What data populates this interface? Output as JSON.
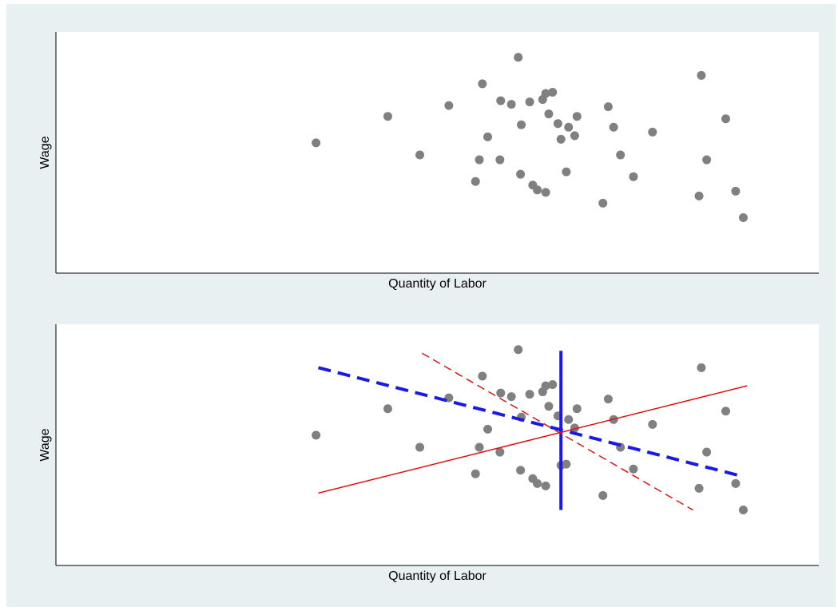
{
  "chart_data": [
    {
      "type": "scatter",
      "xlabel": "Quantity of Labor",
      "ylabel": "Wage",
      "xlim": [
        0,
        100
      ],
      "ylim": [
        0,
        100
      ],
      "grid": false,
      "point_color": "#808080",
      "points": [
        [
          34.1,
          54.0
        ],
        [
          43.5,
          65.0
        ],
        [
          47.7,
          49.0
        ],
        [
          51.5,
          69.5
        ],
        [
          55.5,
          47.0
        ],
        [
          55.0,
          38.0
        ],
        [
          55.9,
          78.5
        ],
        [
          56.6,
          56.5
        ],
        [
          58.3,
          71.5
        ],
        [
          58.2,
          47.0
        ],
        [
          59.7,
          70.0
        ],
        [
          60.9,
          41.0
        ],
        [
          61.0,
          61.5
        ],
        [
          60.6,
          89.5
        ],
        [
          62.1,
          71.0
        ],
        [
          62.5,
          36.5
        ],
        [
          63.1,
          34.5
        ],
        [
          63.8,
          72.0
        ],
        [
          64.2,
          74.5
        ],
        [
          64.6,
          66.0
        ],
        [
          65.1,
          75.0
        ],
        [
          64.2,
          33.5
        ],
        [
          65.8,
          62.0
        ],
        [
          66.2,
          55.5
        ],
        [
          66.9,
          42.0
        ],
        [
          67.2,
          60.5
        ],
        [
          68.0,
          57.0
        ],
        [
          68.3,
          65.0
        ],
        [
          71.7,
          29.0
        ],
        [
          72.4,
          69.0
        ],
        [
          73.1,
          60.5
        ],
        [
          74.0,
          49.0
        ],
        [
          75.7,
          40.0
        ],
        [
          78.2,
          58.5
        ],
        [
          84.3,
          32.0
        ],
        [
          84.6,
          82.0
        ],
        [
          85.3,
          47.0
        ],
        [
          87.8,
          64.0
        ],
        [
          89.1,
          34.0
        ],
        [
          90.1,
          23.0
        ]
      ]
    },
    {
      "type": "scatter",
      "xlabel": "Quantity of Labor",
      "ylabel": "Wage",
      "xlim": [
        0,
        100
      ],
      "ylim": [
        0,
        100
      ],
      "grid": false,
      "point_color": "#808080",
      "points": [
        [
          34.1,
          54.0
        ],
        [
          43.5,
          65.0
        ],
        [
          47.7,
          49.0
        ],
        [
          51.5,
          69.5
        ],
        [
          55.5,
          49.0
        ],
        [
          55.0,
          38.0
        ],
        [
          55.9,
          78.5
        ],
        [
          56.6,
          56.5
        ],
        [
          58.3,
          71.5
        ],
        [
          58.2,
          47.0
        ],
        [
          59.7,
          70.0
        ],
        [
          60.9,
          39.5
        ],
        [
          61.0,
          61.5
        ],
        [
          60.6,
          89.5
        ],
        [
          62.1,
          71.0
        ],
        [
          62.5,
          36.0
        ],
        [
          63.1,
          34.0
        ],
        [
          63.8,
          72.0
        ],
        [
          64.2,
          74.5
        ],
        [
          64.6,
          66.0
        ],
        [
          65.1,
          75.0
        ],
        [
          64.2,
          33.0
        ],
        [
          65.8,
          62.0
        ],
        [
          66.2,
          41.5
        ],
        [
          66.9,
          42.0
        ],
        [
          67.2,
          60.5
        ],
        [
          68.0,
          57.0
        ],
        [
          68.3,
          65.0
        ],
        [
          71.7,
          29.0
        ],
        [
          72.4,
          69.0
        ],
        [
          73.1,
          60.5
        ],
        [
          74.0,
          49.0
        ],
        [
          75.7,
          40.0
        ],
        [
          78.2,
          58.5
        ],
        [
          84.3,
          32.0
        ],
        [
          84.6,
          82.0
        ],
        [
          85.3,
          47.0
        ],
        [
          87.8,
          64.0
        ],
        [
          89.1,
          34.0
        ],
        [
          90.1,
          23.0
        ]
      ],
      "lines": [
        {
          "style": "dashed-thick",
          "color": "#1a1ae6",
          "x": [
            34.4,
            89.3
          ],
          "y": [
            82.0,
            37.5
          ]
        },
        {
          "style": "solid-thick",
          "color": "#1a1ae6",
          "x": [
            66.2,
            66.2
          ],
          "y": [
            89.0,
            23.0
          ]
        },
        {
          "style": "solid-thin",
          "color": "#dd1111",
          "x": [
            34.4,
            90.6
          ],
          "y": [
            30.0,
            74.5
          ]
        },
        {
          "style": "dashed-thin",
          "color": "#dd1111",
          "x": [
            48.0,
            83.5
          ],
          "y": [
            88.0,
            23.0
          ]
        }
      ]
    }
  ]
}
